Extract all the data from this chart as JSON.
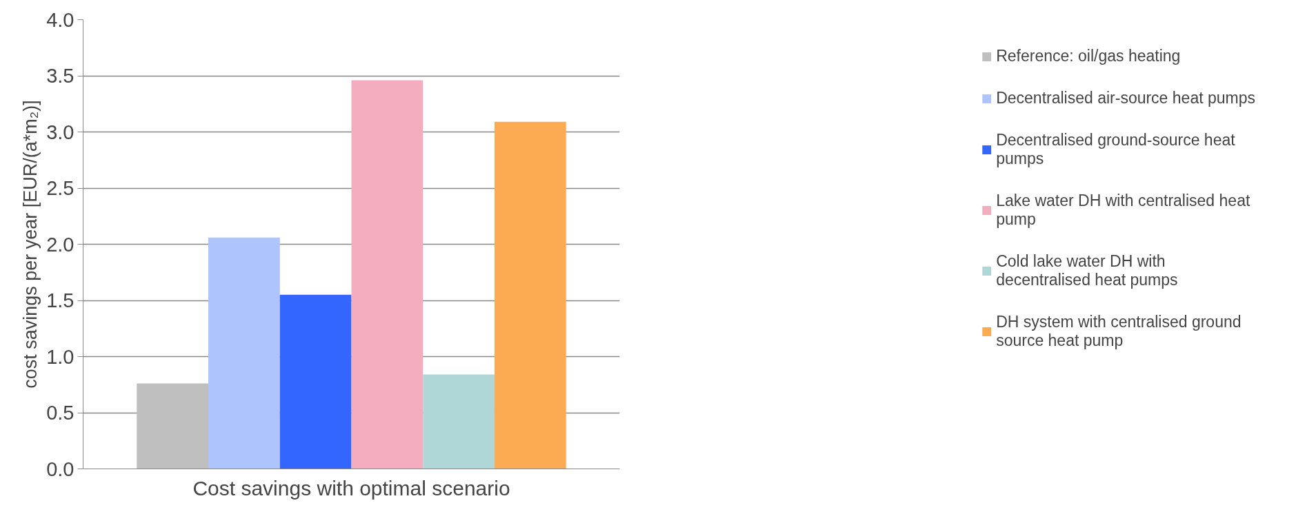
{
  "chart_data": {
    "type": "bar",
    "ylabel": "cost savings per year [EUR/(a*m₂)]",
    "categories": [
      "Cost savings with optimal scenario"
    ],
    "series": [
      {
        "name": "Reference: oil/gas heating",
        "color": "#bfbfbf",
        "values": [
          0.76
        ]
      },
      {
        "name": "Decentralised air-source heat pumps",
        "color": "#aec4fd",
        "values": [
          2.06
        ]
      },
      {
        "name": "Decentralised ground-source heat pumps",
        "color": "#3366ff",
        "values": [
          1.55
        ]
      },
      {
        "name": "Lake water DH with centralised heat pump",
        "color": "#f3adbf",
        "values": [
          3.46
        ]
      },
      {
        "name": "Cold lake water DH with decentralised heat pumps",
        "color": "#afd7d7",
        "values": [
          0.84
        ]
      },
      {
        "name": "DH system with centralised ground source heat pump",
        "color": "#fdab52",
        "values": [
          3.09
        ]
      }
    ],
    "ylim": [
      0,
      4
    ],
    "yticks": [
      {
        "value": 0,
        "label": "0.0"
      },
      {
        "value": 0.5,
        "label": "0.5"
      },
      {
        "value": 1,
        "label": "1.0"
      },
      {
        "value": 1.5,
        "label": "1.5"
      },
      {
        "value": 2,
        "label": "2.0"
      },
      {
        "value": 2.5,
        "label": "2.5"
      },
      {
        "value": 3,
        "label": "3.0"
      },
      {
        "value": 3.5,
        "label": "3.5"
      },
      {
        "value": 4,
        "label": "4.0"
      }
    ],
    "grid": "y",
    "legend": "right"
  }
}
